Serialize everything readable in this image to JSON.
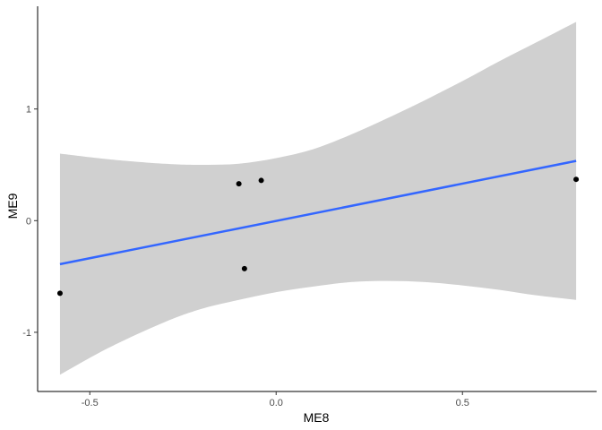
{
  "chart_data": {
    "type": "scatter",
    "xlabel": "ME8",
    "ylabel": "ME9",
    "xlim": [
      -0.64,
      0.86
    ],
    "ylim": [
      -1.53,
      1.92
    ],
    "x_ticks": [
      -0.5,
      0.0,
      0.5
    ],
    "x_tick_labels": [
      "-0.5",
      "0.0",
      "0.5"
    ],
    "y_ticks": [
      -1,
      0,
      1
    ],
    "y_tick_labels": [
      "-1",
      "0",
      "1"
    ],
    "grid": false,
    "points": [
      {
        "x": -0.58,
        "y": -0.65
      },
      {
        "x": -0.1,
        "y": 0.33
      },
      {
        "x": -0.04,
        "y": 0.36
      },
      {
        "x": -0.085,
        "y": -0.43
      },
      {
        "x": 0.805,
        "y": 0.37
      }
    ],
    "fit_line": {
      "x": [
        -0.58,
        0.805
      ],
      "y": [
        -0.39,
        0.535
      ]
    },
    "confidence_band": {
      "x": [
        -0.58,
        -0.45,
        -0.3,
        -0.2,
        -0.1,
        0.0,
        0.1,
        0.2,
        0.3,
        0.4,
        0.5,
        0.6,
        0.7,
        0.805
      ],
      "upper": [
        0.6,
        0.55,
        0.51,
        0.5,
        0.51,
        0.56,
        0.64,
        0.77,
        0.92,
        1.08,
        1.25,
        1.43,
        1.6,
        1.78
      ],
      "lower": [
        -1.38,
        -1.14,
        -0.91,
        -0.79,
        -0.71,
        -0.64,
        -0.59,
        -0.55,
        -0.54,
        -0.55,
        -0.58,
        -0.62,
        -0.67,
        -0.71
      ]
    },
    "colors": {
      "line": "#3366ff",
      "band": "#d0d0d0",
      "point": "#000000",
      "axis": "#000000"
    }
  }
}
